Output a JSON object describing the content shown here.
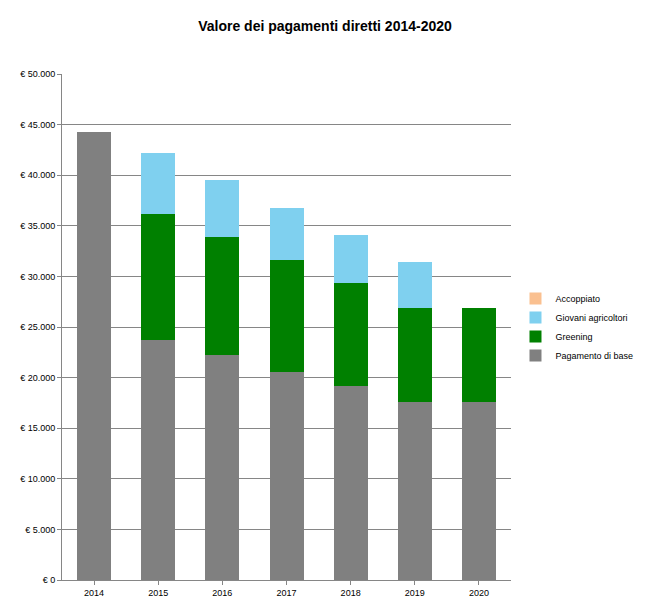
{
  "chart_data": {
    "type": "bar",
    "title": "Valore dei pagamenti diretti 2014-2020",
    "categories": [
      "2014",
      "2015",
      "2016",
      "2017",
      "2018",
      "2019",
      "2020"
    ],
    "series": [
      {
        "name": "Pagamento di base",
        "color": "#808080",
        "values": [
          44300,
          23700,
          22200,
          20600,
          19200,
          17600,
          17600
        ]
      },
      {
        "name": "Greening",
        "color": "#008000",
        "values": [
          0,
          12500,
          11700,
          11000,
          10100,
          9300,
          9300
        ]
      },
      {
        "name": "Giovani agricoltori",
        "color": "#7fd0ef",
        "values": [
          0,
          6000,
          5600,
          5200,
          4800,
          4500,
          0
        ]
      },
      {
        "name": "Accoppiato",
        "color": "#fac090",
        "values": [
          0,
          0,
          0,
          0,
          0,
          0,
          0
        ]
      }
    ],
    "stacked": true,
    "ylim": [
      0,
      50000
    ],
    "yticks": [
      {
        "value": 0,
        "label": "€ 0"
      },
      {
        "value": 5000,
        "label": "€ 5.000"
      },
      {
        "value": 10000,
        "label": "€ 10.000"
      },
      {
        "value": 15000,
        "label": "€ 15.000"
      },
      {
        "value": 20000,
        "label": "€ 20.000"
      },
      {
        "value": 25000,
        "label": "€ 25.000"
      },
      {
        "value": 30000,
        "label": "€ 30.000"
      },
      {
        "value": 35000,
        "label": "€ 35.000"
      },
      {
        "value": 40000,
        "label": "€ 40.000"
      },
      {
        "value": 45000,
        "label": "€ 45.000"
      },
      {
        "value": 50000,
        "label": "€ 50.000"
      }
    ],
    "grid": true,
    "legend": "right"
  }
}
